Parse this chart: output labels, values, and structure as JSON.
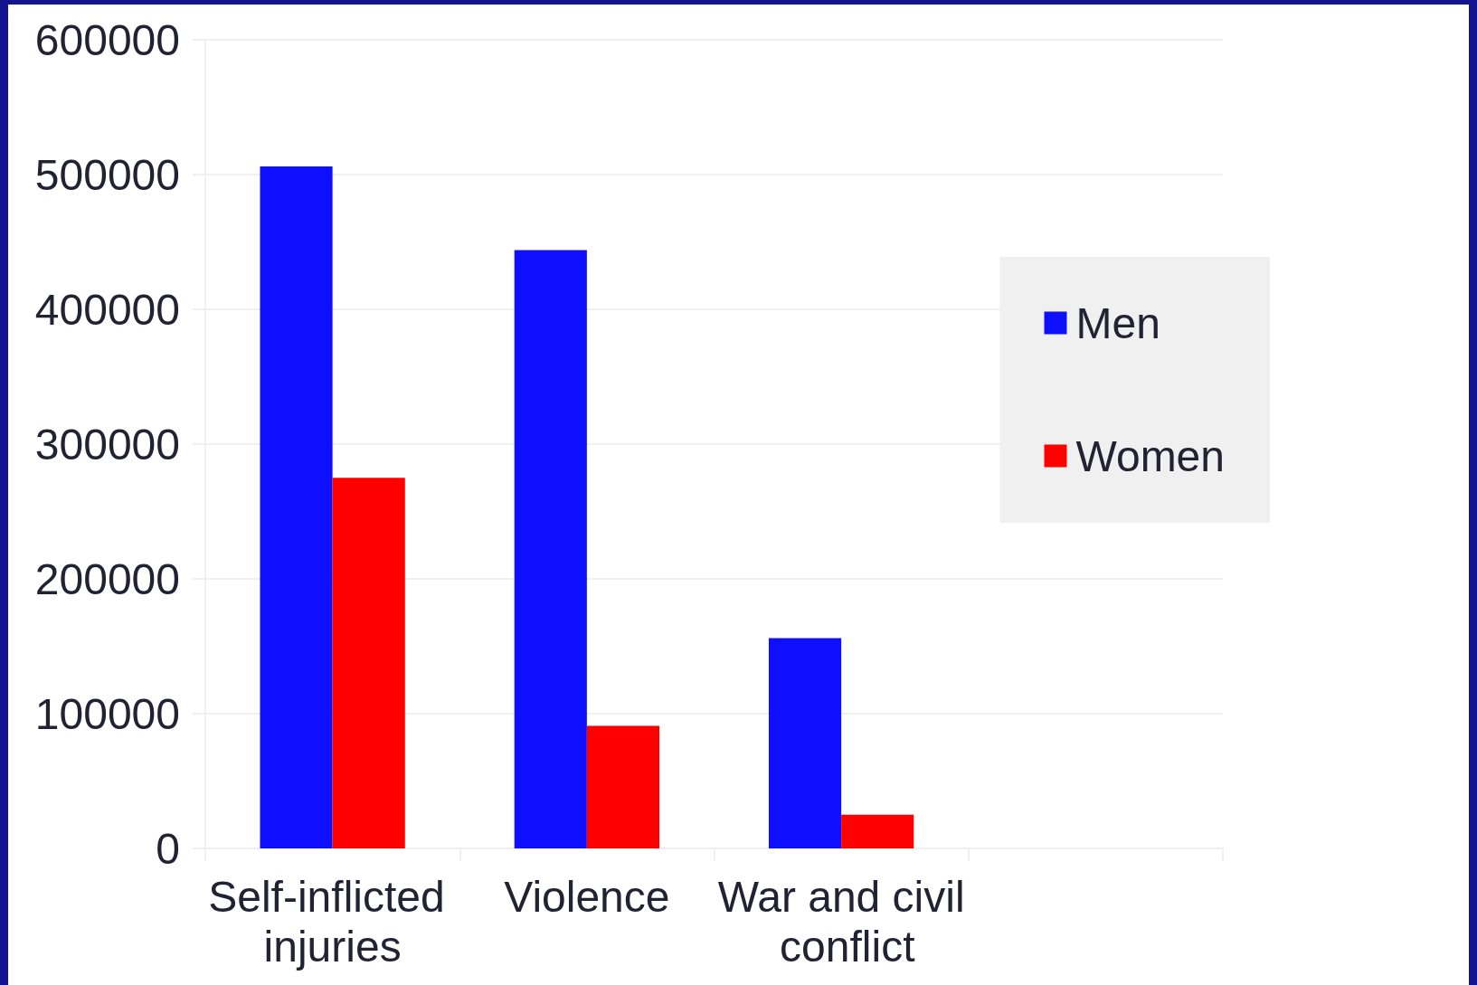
{
  "chart_data": {
    "type": "bar",
    "categories": [
      "Self-inflicted injuries",
      "Violence",
      "War and civil conflict",
      null
    ],
    "series": [
      {
        "name": "Men",
        "color": "#0f0fff",
        "values": [
          506000,
          444000,
          156000,
          null
        ]
      },
      {
        "name": "Women",
        "color": "#ff0000",
        "values": [
          275000,
          91000,
          25000,
          null
        ]
      }
    ],
    "ylim": [
      0,
      600000
    ],
    "yticks": [
      0,
      100000,
      200000,
      300000,
      400000,
      500000,
      600000
    ],
    "grid": "y",
    "legend": "right"
  }
}
